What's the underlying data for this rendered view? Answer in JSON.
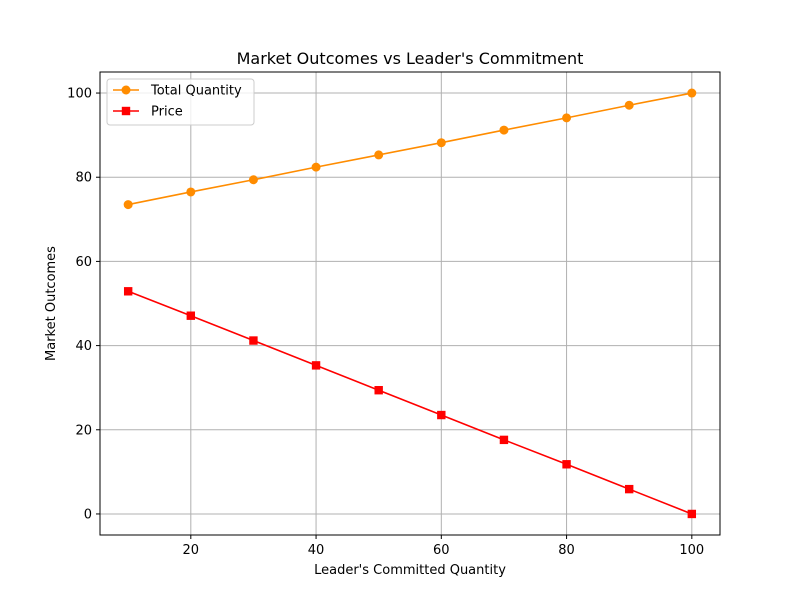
{
  "chart_data": {
    "type": "line",
    "title": "Market Outcomes vs Leader's Commitment",
    "xlabel": "Leader's Committed Quantity",
    "ylabel": "Market Outcomes",
    "xlim": [
      5.5,
      104.5
    ],
    "ylim": [
      -5,
      105
    ],
    "x_ticks": [
      20,
      40,
      60,
      80,
      100
    ],
    "y_ticks": [
      0,
      20,
      40,
      60,
      80,
      100
    ],
    "x_tick_labels": [
      "20",
      "40",
      "60",
      "80",
      "100"
    ],
    "y_tick_labels": [
      "0",
      "20",
      "40",
      "60",
      "80",
      "100"
    ],
    "grid": true,
    "legend_position": "top-left",
    "x": [
      10,
      20,
      30,
      40,
      50,
      60,
      70,
      80,
      90,
      100
    ],
    "series": [
      {
        "name": "Total Quantity",
        "color": "#ff8c00",
        "marker": "circle",
        "values": [
          73.5,
          76.5,
          79.4,
          82.4,
          85.3,
          88.2,
          91.2,
          94.1,
          97.1,
          100.0
        ]
      },
      {
        "name": "Price",
        "color": "#ff0000",
        "marker": "square",
        "values": [
          52.9,
          47.1,
          41.2,
          35.3,
          29.4,
          23.5,
          17.6,
          11.8,
          5.9,
          0.0
        ]
      }
    ]
  }
}
